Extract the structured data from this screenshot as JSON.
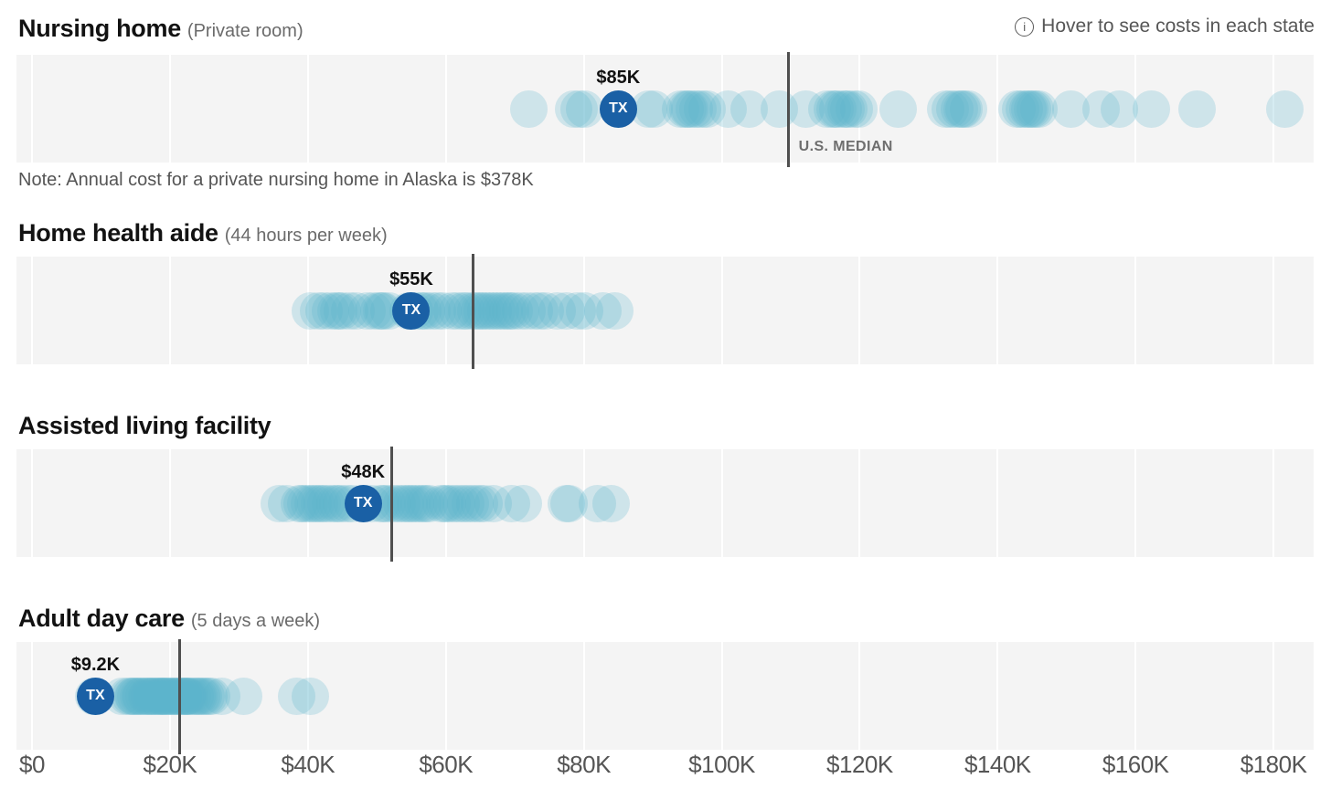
{
  "header": {
    "info_hint": "Hover to see costs in each state",
    "info_icon": "circled-i"
  },
  "colors": {
    "dot_fill": "rgba(90,180,205,0.25)",
    "tx_fill": "#1a60a5",
    "tx_text": "#ffffff",
    "median_line": "#4f4f4f",
    "median_label": "#6e6e6e",
    "strip_background": "#f4f4f4",
    "gridline": "#ffffff",
    "axis_text": "#555555",
    "title_text": "#121212",
    "subtitle_text": "#6b6b6b"
  },
  "chart_data": {
    "type": "scatter",
    "subtype": "strip-dot-plot, one row per care type, one translucent dot per state",
    "unit": "annual cost, thousands of US dollars",
    "x_axis": {
      "min_k": 0,
      "max_k": 185.8,
      "tick_interval_k": 20,
      "grid": true,
      "ticks": [
        {
          "value_k": 0,
          "label": "$0"
        },
        {
          "value_k": 20,
          "label": "$20K"
        },
        {
          "value_k": 40,
          "label": "$40K"
        },
        {
          "value_k": 60,
          "label": "$60K"
        },
        {
          "value_k": 80,
          "label": "$80K"
        },
        {
          "value_k": 100,
          "label": "$100K"
        },
        {
          "value_k": 120,
          "label": "$120K"
        },
        {
          "value_k": 140,
          "label": "$140K"
        },
        {
          "value_k": 160,
          "label": "$160K"
        },
        {
          "value_k": 180,
          "label": "$180K"
        }
      ]
    },
    "sections": [
      {
        "title": "Nursing home",
        "subtitle": "(Private room)",
        "note": "Note: Annual cost for a private nursing home in Alaska is $378K",
        "tx": {
          "label": "TX",
          "value_k": 85,
          "value_label": "$85K"
        },
        "us_median": {
          "value_k": 109.7,
          "label": "U.S. MEDIAN",
          "show_label": true
        },
        "state_costs_k": [
          72,
          78.5,
          79.3,
          80.1,
          85,
          89.4,
          90.2,
          94,
          94.7,
          95.1,
          95.4,
          96,
          96.6,
          97.2,
          97.9,
          100.9,
          104,
          108.3,
          112.2,
          115.2,
          116,
          116.4,
          116.8,
          117.6,
          118,
          118.4,
          119.2,
          119.9,
          125.6,
          132.5,
          133.1,
          133.8,
          134.4,
          134.9,
          135.1,
          135.8,
          142.8,
          143.3,
          143.9,
          144.4,
          144.7,
          145,
          145.5,
          146,
          150.6,
          155,
          157.6,
          162.3,
          168.9,
          181.7
        ]
      },
      {
        "title": "Home health aide",
        "subtitle": "(44 hours per week)",
        "note": "",
        "tx": {
          "label": "TX",
          "value_k": 55,
          "value_label": "$55K"
        },
        "us_median": {
          "value_k": 63.9,
          "label": "U.S. MEDIAN",
          "show_label": false
        },
        "state_costs_k": [
          40.4,
          41.5,
          42.4,
          43.3,
          44.1,
          44.5,
          45,
          46,
          47,
          48.6,
          49.5,
          50.3,
          50.7,
          51,
          51.7,
          54.6,
          55.5,
          56.3,
          56.7,
          57.2,
          58,
          58.8,
          59.6,
          60.9,
          61.7,
          62.5,
          63,
          63.8,
          64.3,
          64.9,
          65.3,
          65.8,
          66.3,
          66.9,
          67.4,
          67.9,
          68.4,
          69,
          69.4,
          69.9,
          70.8,
          71.8,
          72.8,
          73.6,
          74.4,
          76.2,
          77.5,
          79.1,
          80.1,
          82.8,
          84.5
        ]
      },
      {
        "title": "Assisted living facility",
        "subtitle": "",
        "note": "",
        "tx": {
          "label": "TX",
          "value_k": 48,
          "value_label": "$48K"
        },
        "us_median": {
          "value_k": 52.2,
          "label": "U.S. MEDIAN",
          "show_label": false
        },
        "state_costs_k": [
          35.8,
          36.9,
          38.8,
          39.2,
          39.7,
          40.2,
          40.7,
          41.2,
          41.7,
          42.1,
          42.6,
          43.3,
          44,
          44.4,
          44.8,
          45.6,
          46.5,
          48,
          49.3,
          50.6,
          51,
          51.5,
          52.3,
          52.9,
          53.6,
          54.1,
          54.7,
          55.1,
          55.6,
          56.1,
          56.7,
          57.1,
          57.6,
          59.3,
          59.8,
          60.3,
          60.9,
          61.6,
          62.2,
          62.9,
          63.5,
          64.2,
          64.9,
          65.6,
          66.8,
          69.5,
          71.3,
          77.5,
          77.9,
          82,
          84
        ]
      },
      {
        "title": "Adult day care",
        "subtitle": "(5 days a week)",
        "note": "",
        "tx": {
          "label": "TX",
          "value_k": 9.2,
          "value_label": "$9.2K"
        },
        "us_median": {
          "value_k": 21.4,
          "label": "U.S. MEDIAN",
          "show_label": false
        },
        "state_costs_k": [
          9,
          13,
          13.9,
          14.3,
          14.6,
          14.8,
          15.1,
          15.5,
          15.7,
          15.9,
          16.3,
          16.6,
          16.8,
          17,
          17.3,
          17.6,
          17.8,
          18,
          18.3,
          18.6,
          18.7,
          18.9,
          19.2,
          19.4,
          19.6,
          19.9,
          20.1,
          20.3,
          20.6,
          20.9,
          21.2,
          21.4,
          21.6,
          21.9,
          22.1,
          22.3,
          22.5,
          22.6,
          22.9,
          23.2,
          23.6,
          23.9,
          24.2,
          24.6,
          24.9,
          25.2,
          25.6,
          26.1,
          27.5,
          30.7,
          38.4,
          40.4
        ]
      }
    ]
  }
}
